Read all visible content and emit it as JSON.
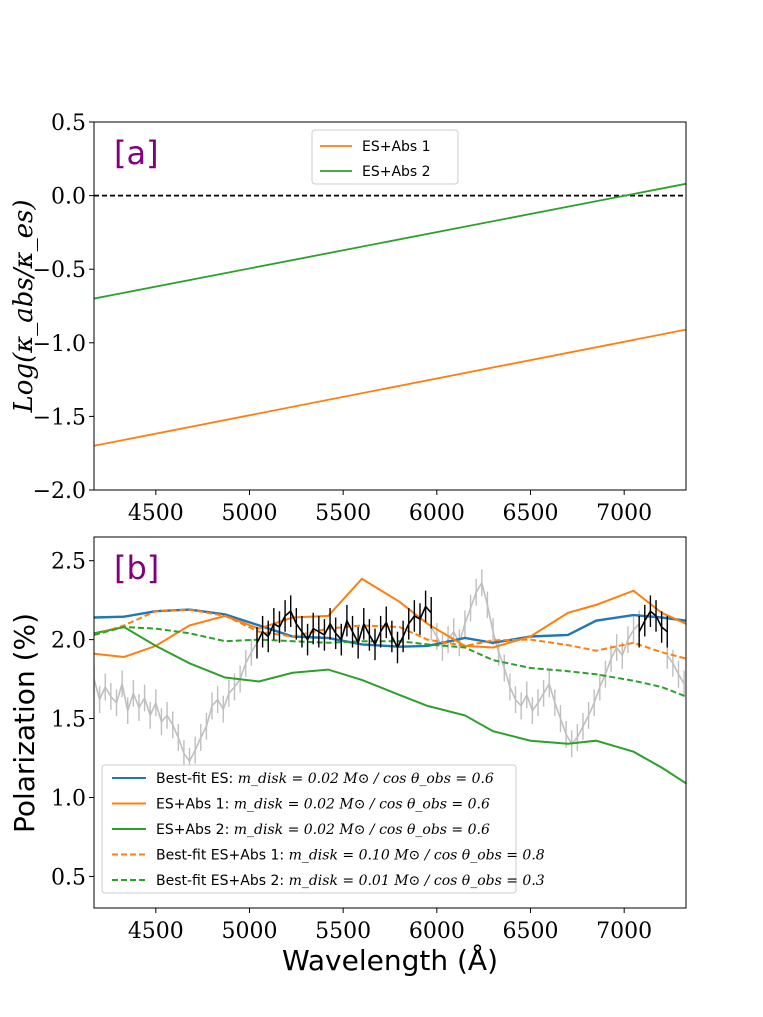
{
  "chart_data": [
    {
      "id": "a",
      "type": "line",
      "panel_label": "[a]",
      "ylabel": "Log(κ_abs/κ_es)",
      "xlabel": "",
      "xlim": [
        4170,
        7330
      ],
      "ylim": [
        -2.0,
        0.5
      ],
      "xticks": [
        4500,
        5000,
        5500,
        6000,
        6500,
        7000
      ],
      "yticks": [
        -2.0,
        -1.5,
        -1.0,
        -0.5,
        0.0,
        0.5
      ],
      "ytick_labels": [
        "−2.0",
        "−1.5",
        "−1.0",
        "−0.5",
        "0.0",
        "0.5"
      ],
      "legend_position": "top-center",
      "reference_line": {
        "y": 0.0,
        "style": "dashed",
        "color": "#000000"
      },
      "series": [
        {
          "name": "ES+Abs 1",
          "color": "#ff7f0e",
          "x": [
            4170,
            7330
          ],
          "y": [
            -1.7,
            -0.91
          ]
        },
        {
          "name": "ES+Abs 2",
          "color": "#2ca02c",
          "x": [
            4170,
            7330
          ],
          "y": [
            -0.7,
            0.08
          ]
        }
      ]
    },
    {
      "id": "b",
      "type": "line",
      "panel_label": "[b]",
      "ylabel": "Polarization (%)",
      "xlabel": "Wavelength (Å)",
      "xlim": [
        4170,
        7330
      ],
      "ylim": [
        0.3,
        2.65
      ],
      "xticks": [
        4500,
        5000,
        5500,
        6000,
        6500,
        7000
      ],
      "yticks": [
        0.5,
        1.0,
        1.5,
        2.0,
        2.5
      ],
      "ytick_labels": [
        "0.5",
        "1.0",
        "1.5",
        "2.0",
        "2.5"
      ],
      "legend_position": "bottom-left",
      "series": [
        {
          "name": "Best-fit ES:",
          "params": "m_disk = 0.02 M⊙ / cos θ_obs = 0.6",
          "color": "#1f77b4",
          "style": "solid",
          "x": [
            4170,
            4330,
            4500,
            4680,
            4870,
            5050,
            5230,
            5420,
            5600,
            5800,
            5950,
            6150,
            6300,
            6500,
            6700,
            6850,
            7050,
            7200,
            7330
          ],
          "y": [
            2.14,
            2.145,
            2.18,
            2.19,
            2.16,
            2.09,
            2.02,
            2.01,
            1.97,
            1.955,
            1.96,
            2.01,
            1.98,
            2.02,
            2.03,
            2.12,
            2.155,
            2.14,
            2.12
          ]
        },
        {
          "name": "ES+Abs 1:",
          "params": "m_disk = 0.02 M⊙ / cos θ_obs = 0.6",
          "color": "#ff7f0e",
          "style": "solid",
          "x": [
            4170,
            4330,
            4500,
            4680,
            4870,
            5050,
            5230,
            5420,
            5600,
            5800,
            5950,
            6150,
            6300,
            6500,
            6700,
            6850,
            7050,
            7200,
            7330
          ],
          "y": [
            1.91,
            1.89,
            1.96,
            2.09,
            2.15,
            2.07,
            2.14,
            2.15,
            2.385,
            2.24,
            2.1,
            1.96,
            1.95,
            2.02,
            2.17,
            2.22,
            2.31,
            2.17,
            2.1
          ]
        },
        {
          "name": "ES+Abs 2:",
          "params": "m_disk = 0.02 M⊙ / cos θ_obs = 0.6",
          "color": "#2ca02c",
          "style": "solid",
          "x": [
            4170,
            4330,
            4500,
            4680,
            4870,
            5050,
            5230,
            5420,
            5600,
            5800,
            5950,
            6150,
            6300,
            6500,
            6700,
            6850,
            7050,
            7200,
            7330
          ],
          "y": [
            2.04,
            2.08,
            1.96,
            1.85,
            1.76,
            1.735,
            1.79,
            1.81,
            1.745,
            1.65,
            1.58,
            1.52,
            1.42,
            1.36,
            1.34,
            1.36,
            1.29,
            1.19,
            1.09
          ]
        },
        {
          "name": "Best-fit ES+Abs 1:",
          "params": "m_disk = 0.10 M⊙ / cos θ_obs = 0.8",
          "color": "#ff7f0e",
          "style": "dashed",
          "x": [
            4170,
            4330,
            4500,
            4680,
            4870,
            5050,
            5230,
            5420,
            5600,
            5800,
            5950,
            6150,
            6300,
            6500,
            6700,
            6850,
            7050,
            7200,
            7330
          ],
          "y": [
            2.03,
            2.09,
            2.18,
            2.19,
            2.15,
            2.05,
            2.02,
            2.07,
            2.09,
            2.08,
            2.0,
            1.96,
            1.995,
            2.0,
            1.965,
            1.93,
            1.98,
            1.92,
            1.88
          ]
        },
        {
          "name": "Best-fit ES+Abs 2:",
          "params": "m_disk = 0.01 M⊙ / cos θ_obs = 0.3",
          "color": "#2ca02c",
          "style": "dashed",
          "x": [
            4170,
            4330,
            4500,
            4680,
            4870,
            5050,
            5230,
            5420,
            5600,
            5800,
            5950,
            6150,
            6300,
            6500,
            6700,
            6850,
            7050,
            7200,
            7330
          ],
          "y": [
            2.03,
            2.08,
            2.07,
            2.04,
            1.99,
            2.0,
            1.99,
            1.98,
            1.99,
            1.99,
            1.97,
            1.95,
            1.87,
            1.82,
            1.8,
            1.78,
            1.74,
            1.7,
            1.64
          ]
        }
      ],
      "observed": {
        "gray": {
          "color": "#bfbfbf",
          "err": 0.085,
          "x": [
            4170,
            4200,
            4230,
            4260,
            4290,
            4320,
            4350,
            4380,
            4410,
            4440,
            4470,
            4500,
            4530,
            4560,
            4590,
            4620,
            4650,
            4680,
            4710,
            4740,
            4770,
            4800,
            4830,
            4860,
            4890,
            4920,
            4950,
            4980,
            5010,
            5040,
            5970,
            6000,
            6030,
            6060,
            6090,
            6120,
            6150,
            6180,
            6210,
            6240,
            6270,
            6300,
            6330,
            6360,
            6390,
            6420,
            6450,
            6480,
            6510,
            6540,
            6570,
            6600,
            6630,
            6660,
            6690,
            6720,
            6750,
            6780,
            6810,
            6840,
            6870,
            6900,
            6930,
            6960,
            6990,
            7020,
            7050,
            7080,
            7230,
            7260,
            7290,
            7320
          ],
          "y": [
            1.75,
            1.62,
            1.7,
            1.64,
            1.6,
            1.72,
            1.55,
            1.66,
            1.57,
            1.63,
            1.52,
            1.6,
            1.48,
            1.52,
            1.46,
            1.38,
            1.28,
            1.23,
            1.3,
            1.38,
            1.45,
            1.58,
            1.62,
            1.56,
            1.66,
            1.7,
            1.75,
            1.85,
            1.92,
            1.98,
            2.08,
            2.02,
            1.95,
            2.0,
            2.05,
            1.98,
            2.1,
            2.2,
            2.3,
            2.36,
            2.22,
            2.05,
            1.92,
            1.82,
            1.7,
            1.62,
            1.58,
            1.65,
            1.55,
            1.6,
            1.66,
            1.72,
            1.6,
            1.5,
            1.4,
            1.34,
            1.38,
            1.45,
            1.52,
            1.6,
            1.7,
            1.78,
            1.88,
            1.95,
            1.9,
            2.0,
            2.06,
            2.1,
            1.9,
            1.85,
            1.78,
            1.72
          ]
        },
        "black_segments": [
          {
            "color": "#000000",
            "err": 0.1,
            "x": [
              5040,
              5070,
              5100,
              5130,
              5160,
              5190,
              5220,
              5250,
              5280,
              5310,
              5340,
              5370,
              5400,
              5430,
              5460,
              5490,
              5520,
              5550,
              5580,
              5610,
              5640,
              5670,
              5700,
              5730,
              5760,
              5790,
              5820,
              5850,
              5880,
              5910,
              5940,
              5970
            ],
            "y": [
              1.98,
              2.05,
              2.02,
              2.1,
              2.08,
              2.15,
              2.18,
              2.1,
              2.05,
              2.0,
              2.07,
              2.05,
              2.03,
              2.1,
              2.04,
              2.0,
              2.12,
              2.05,
              1.98,
              2.1,
              2.03,
              1.97,
              2.05,
              2.11,
              2.02,
              1.95,
              2.02,
              2.1,
              2.15,
              2.13,
              2.21,
              2.17
            ]
          },
          {
            "color": "#000000",
            "err": 0.1,
            "x": [
              7080,
              7110,
              7140,
              7170,
              7200,
              7230
            ],
            "y": [
              2.05,
              2.12,
              2.18,
              2.15,
              2.08,
              2.05
            ]
          }
        ]
      }
    }
  ]
}
